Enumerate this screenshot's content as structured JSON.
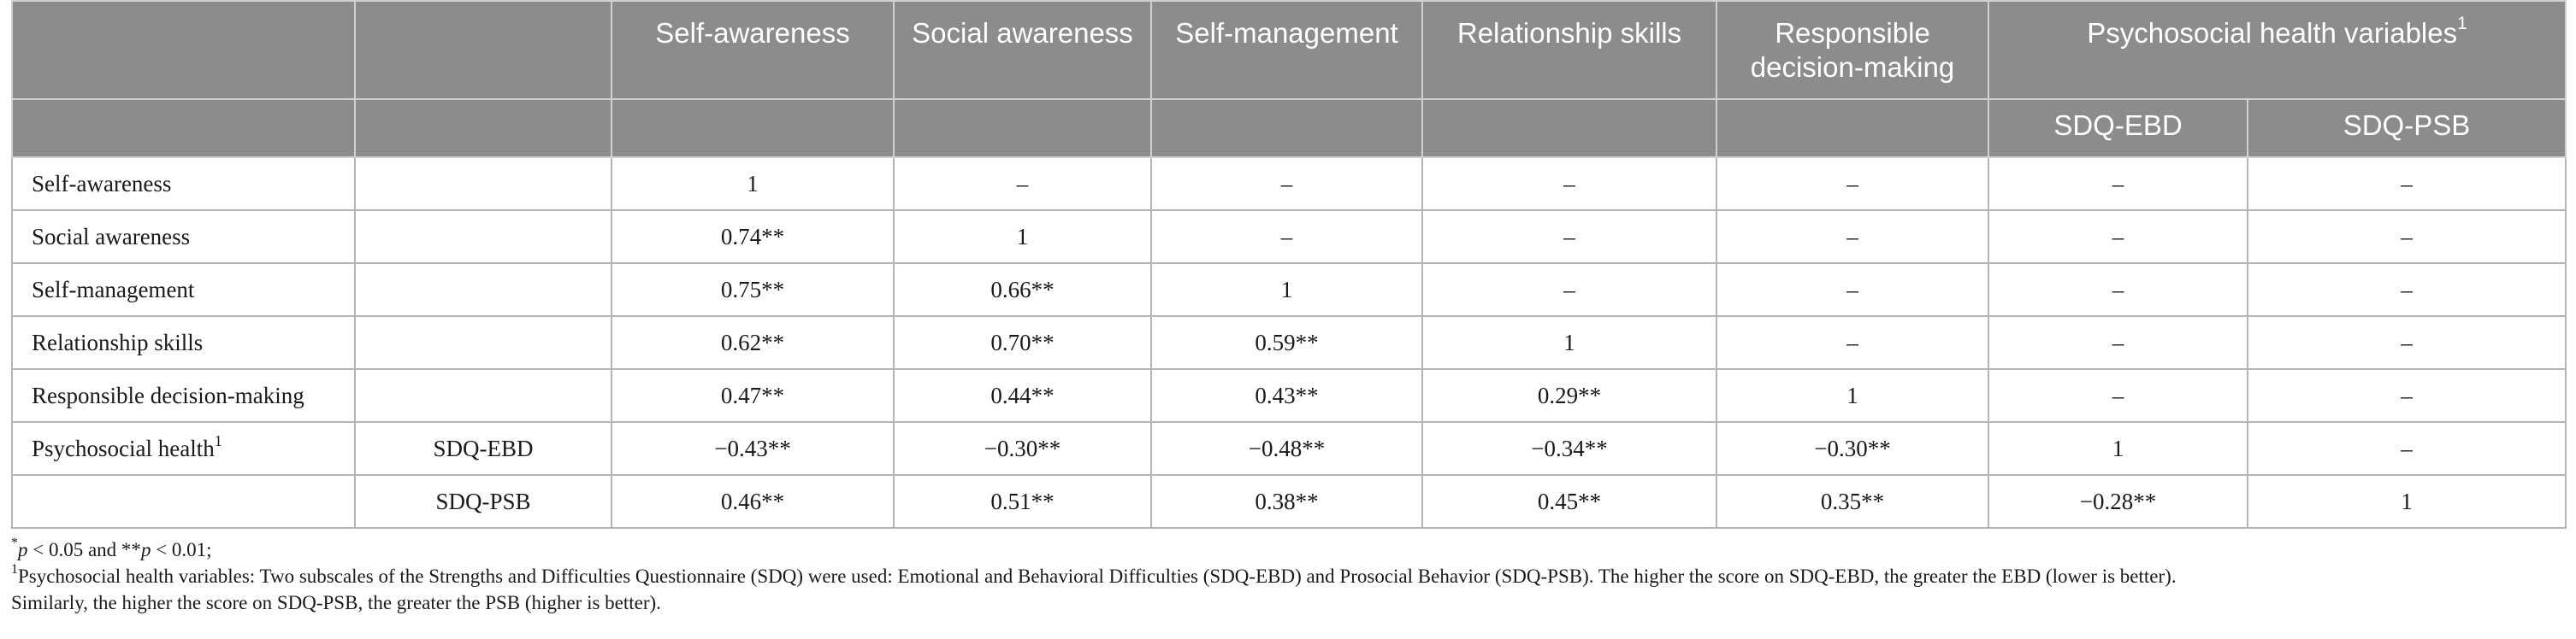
{
  "table": {
    "header_top": [
      "",
      "",
      "Self-awareness",
      "Social awareness",
      "Self-management",
      "Relationship skills",
      "Responsible decision-making"
    ],
    "header_psych": "Psychosocial health variables",
    "header_psych_sup": "1",
    "header_sub": [
      "SDQ-EBD",
      "SDQ-PSB"
    ],
    "rows": [
      {
        "label": "Self-awareness",
        "label_sup": "",
        "sub": "",
        "cells": [
          "1",
          "–",
          "–",
          "–",
          "–",
          "–",
          "–"
        ]
      },
      {
        "label": "Social awareness",
        "label_sup": "",
        "sub": "",
        "cells": [
          "0.74**",
          "1",
          "–",
          "–",
          "–",
          "–",
          "–"
        ]
      },
      {
        "label": "Self-management",
        "label_sup": "",
        "sub": "",
        "cells": [
          "0.75**",
          "0.66**",
          "1",
          "–",
          "–",
          "–",
          "–"
        ]
      },
      {
        "label": "Relationship skills",
        "label_sup": "",
        "sub": "",
        "cells": [
          "0.62**",
          "0.70**",
          "0.59**",
          "1",
          "–",
          "–",
          "–"
        ]
      },
      {
        "label": "Responsible decision-making",
        "label_sup": "",
        "sub": "",
        "cells": [
          "0.47**",
          "0.44**",
          "0.43**",
          "0.29**",
          "1",
          "–",
          "–"
        ]
      },
      {
        "label": "Psychosocial health",
        "label_sup": "1",
        "sub": "SDQ-EBD",
        "cells": [
          "−0.43**",
          "−0.30**",
          "−0.48**",
          "−0.34**",
          "−0.30**",
          "1",
          "–"
        ]
      },
      {
        "label": "",
        "label_sup": "",
        "sub": "SDQ-PSB",
        "cells": [
          "0.46**",
          "0.51**",
          "0.38**",
          "0.45**",
          "0.35**",
          "−0.28**",
          "1"
        ]
      }
    ]
  },
  "footnotes": {
    "sig_prefix": "*",
    "sig_p1": "p",
    "sig_mid": " < 0.05 and **",
    "sig_p2": "p",
    "sig_end": " < 0.01;",
    "note1_sup": "1",
    "note1_text": "Psychosocial health variables: Two subscales of the Strengths and Difficulties Questionnaire (SDQ) were used: Emotional and Behavioral Difficulties (SDQ-EBD) and Prosocial Behavior (SDQ-PSB). The higher the score on SDQ-EBD, the greater the EBD (lower is better).",
    "note2_text": "Similarly, the higher the score on SDQ-PSB, the greater the PSB (higher is better)."
  }
}
